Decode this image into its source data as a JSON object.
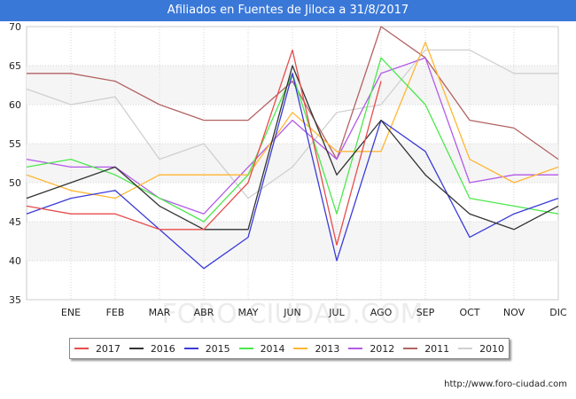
{
  "header": {
    "title": "Afiliados en Fuentes de Jiloca a 31/8/2017"
  },
  "footer": {
    "source": "http://www.foro-ciudad.com"
  },
  "watermark": "FORO-CIUDAD.COM",
  "chart_data": {
    "type": "line",
    "title": "Afiliados en Fuentes de Jiloca a 31/8/2017",
    "categories": [
      "",
      "ENE",
      "FEB",
      "MAR",
      "ABR",
      "MAY",
      "JUN",
      "JUL",
      "AGO",
      "SEP",
      "OCT",
      "NOV",
      "DIC"
    ],
    "ylim": [
      35,
      70
    ],
    "yticks": [
      35,
      40,
      45,
      50,
      55,
      60,
      65,
      70
    ],
    "grid": true,
    "legend_position": "bottom",
    "series": [
      {
        "name": "2017",
        "color": "#e84c4c",
        "values": [
          47,
          46,
          46,
          44,
          44,
          50,
          67,
          42,
          63,
          null,
          null,
          null,
          null
        ]
      },
      {
        "name": "2016",
        "color": "#333333",
        "values": [
          48,
          50,
          52,
          47,
          44,
          44,
          65,
          51,
          58,
          51,
          46,
          44,
          47
        ]
      },
      {
        "name": "2015",
        "color": "#3b3bd9",
        "values": [
          46,
          48,
          49,
          44,
          39,
          43,
          64,
          40,
          58,
          54,
          43,
          46,
          48
        ]
      },
      {
        "name": "2014",
        "color": "#4ce84c",
        "values": [
          52,
          53,
          51,
          48,
          45,
          51,
          64,
          46,
          66,
          60,
          48,
          47,
          46
        ]
      },
      {
        "name": "2013",
        "color": "#ffb733",
        "values": [
          51,
          49,
          48,
          51,
          51,
          51,
          59,
          54,
          54,
          68,
          53,
          50,
          52
        ]
      },
      {
        "name": "2012",
        "color": "#b35ae8",
        "values": [
          53,
          52,
          52,
          48,
          46,
          52,
          58,
          53,
          64,
          66,
          50,
          51,
          51
        ]
      },
      {
        "name": "2011",
        "color": "#b36262",
        "values": [
          64,
          64,
          63,
          60,
          58,
          58,
          63,
          53,
          70,
          66,
          58,
          57,
          53
        ]
      },
      {
        "name": "2010",
        "color": "#d0d0d0",
        "values": [
          62,
          60,
          61,
          53,
          55,
          48,
          52,
          59,
          60,
          67,
          67,
          64,
          64
        ]
      }
    ]
  }
}
